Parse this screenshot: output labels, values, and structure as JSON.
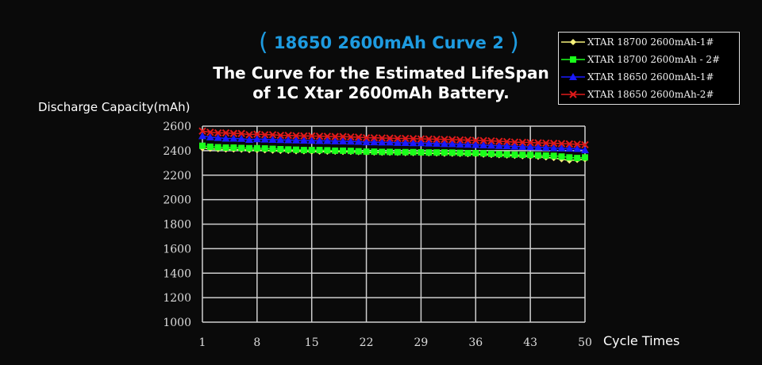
{
  "header": {
    "subtitle_open": "(",
    "subtitle": "18650 2600mAh Curve 2",
    "subtitle_close": ")",
    "title_line1": "The Curve for the Estimated LifeSpan",
    "title_line2": "of 1C Xtar 2600mAh Battery."
  },
  "chart_data": {
    "type": "line",
    "title": "The Curve for the Estimated LifeSpan of 1C Xtar 2600mAh Battery.",
    "subtitle": "18650 2600mAh Curve 2",
    "xlabel": "Cycle Times",
    "ylabel": "Discharge Capacity(mAh)",
    "xlim": [
      1,
      50
    ],
    "ylim": [
      1000,
      2600
    ],
    "x_ticks": [
      1,
      8,
      15,
      22,
      29,
      36,
      43,
      50
    ],
    "y_ticks": [
      1000,
      1200,
      1400,
      1600,
      1800,
      2000,
      2200,
      2400,
      2600
    ],
    "grid": true,
    "legend_position": "top-right",
    "x": [
      1,
      2,
      3,
      4,
      5,
      6,
      7,
      8,
      9,
      10,
      11,
      12,
      13,
      14,
      15,
      16,
      17,
      18,
      19,
      20,
      21,
      22,
      23,
      24,
      25,
      26,
      27,
      28,
      29,
      30,
      31,
      32,
      33,
      34,
      35,
      36,
      37,
      38,
      39,
      40,
      41,
      42,
      43,
      44,
      45,
      46,
      47,
      48,
      49,
      50
    ],
    "series": [
      {
        "name": "XTAR 18700 2600mAh-1#",
        "color": "#f5f07a",
        "marker": "diamond",
        "values": [
          2420,
          2415,
          2412,
          2410,
          2410,
          2408,
          2405,
          2405,
          2403,
          2400,
          2398,
          2398,
          2395,
          2395,
          2393,
          2393,
          2392,
          2392,
          2390,
          2390,
          2388,
          2385,
          2385,
          2383,
          2383,
          2382,
          2380,
          2380,
          2378,
          2378,
          2377,
          2375,
          2375,
          2373,
          2372,
          2370,
          2368,
          2365,
          2363,
          2360,
          2358,
          2355,
          2353,
          2350,
          2345,
          2340,
          2330,
          2320,
          2325,
          2330
        ]
      },
      {
        "name": "XTAR 18700 2600mAh - 2#",
        "color": "#1aff1a",
        "marker": "square",
        "values": [
          2440,
          2432,
          2428,
          2425,
          2425,
          2422,
          2420,
          2420,
          2418,
          2415,
          2412,
          2410,
          2408,
          2405,
          2405,
          2405,
          2403,
          2400,
          2400,
          2398,
          2395,
          2392,
          2392,
          2390,
          2390,
          2388,
          2388,
          2388,
          2386,
          2385,
          2385,
          2385,
          2384,
          2382,
          2380,
          2380,
          2378,
          2375,
          2372,
          2370,
          2368,
          2366,
          2365,
          2362,
          2360,
          2358,
          2352,
          2345,
          2340,
          2345
        ]
      },
      {
        "name": "XTAR 18650 2600mAh-1#",
        "color": "#1a1aff",
        "marker": "triangle",
        "values": [
          2520,
          2510,
          2505,
          2500,
          2500,
          2498,
          2490,
          2495,
          2492,
          2490,
          2488,
          2487,
          2485,
          2483,
          2482,
          2480,
          2480,
          2478,
          2477,
          2475,
          2474,
          2470,
          2470,
          2468,
          2468,
          2465,
          2464,
          2462,
          2462,
          2460,
          2458,
          2456,
          2455,
          2452,
          2450,
          2448,
          2445,
          2443,
          2440,
          2438,
          2435,
          2432,
          2430,
          2428,
          2425,
          2422,
          2420,
          2418,
          2415,
          2405
        ]
      },
      {
        "name": "XTAR 18650 2600mAh-2#",
        "color": "#e01a1a",
        "marker": "x",
        "values": [
          2560,
          2550,
          2545,
          2545,
          2540,
          2540,
          2530,
          2535,
          2530,
          2530,
          2525,
          2525,
          2522,
          2520,
          2520,
          2518,
          2517,
          2515,
          2515,
          2512,
          2510,
          2505,
          2505,
          2503,
          2502,
          2500,
          2500,
          2498,
          2496,
          2495,
          2493,
          2492,
          2490,
          2488,
          2486,
          2484,
          2482,
          2480,
          2476,
          2474,
          2470,
          2468,
          2466,
          2464,
          2462,
          2460,
          2458,
          2455,
          2452,
          2448
        ]
      }
    ]
  }
}
